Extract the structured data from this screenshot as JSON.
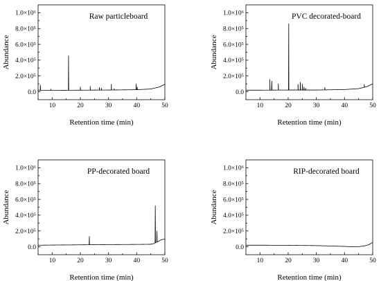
{
  "chart_data": [
    {
      "type": "line",
      "title": "Raw particleboard",
      "xlabel": "Retention time (min)",
      "ylabel": "Abundance",
      "xlim": [
        5,
        50
      ],
      "ylim": [
        -100000,
        1100000
      ],
      "xticks": [
        10,
        20,
        30,
        40,
        50
      ],
      "yticks": [
        0,
        200000,
        400000,
        600000,
        800000,
        1000000
      ],
      "ytick_labels": [
        "0.0",
        "2.0×10⁵",
        "4.0×10⁵",
        "6.0×10⁵",
        "8.0×10⁵",
        "1.0×10⁶"
      ],
      "grid": false,
      "legend": "none",
      "series": [
        {
          "baseline": [
            [
              5,
              18000
            ],
            [
              10,
              18000
            ],
            [
              20,
              20000
            ],
            [
              30,
              22000
            ],
            [
              40,
              26000
            ],
            [
              45,
              35000
            ],
            [
              48,
              60000
            ],
            [
              50,
              95000
            ]
          ],
          "peaks": [
            [
              5.8,
              85000
            ],
            [
              9.5,
              35000
            ],
            [
              15.8,
              455000
            ],
            [
              20,
              60000
            ],
            [
              23.5,
              70000
            ],
            [
              26.8,
              55000
            ],
            [
              27.5,
              45000
            ],
            [
              31,
              95000
            ],
            [
              32,
              40000
            ],
            [
              39.8,
              100000
            ],
            [
              40.2,
              60000
            ]
          ]
        }
      ]
    },
    {
      "type": "line",
      "title": "PVC decorated-board",
      "xlabel": "Retention time (min)",
      "ylabel": "Abundance",
      "xlim": [
        5,
        50
      ],
      "ylim": [
        -100000,
        1100000
      ],
      "xticks": [
        10,
        20,
        30,
        40,
        50
      ],
      "yticks": [
        0,
        200000,
        400000,
        600000,
        800000,
        1000000
      ],
      "ytick_labels": [
        "0.0",
        "2.0×10⁵",
        "4.0×10⁵",
        "6.0×10⁵",
        "8.0×10⁵",
        "1.0×10⁶"
      ],
      "grid": false,
      "legend": "none",
      "series": [
        {
          "baseline": [
            [
              5,
              20000
            ],
            [
              10,
              20000
            ],
            [
              20,
              22000
            ],
            [
              30,
              22000
            ],
            [
              40,
              28000
            ],
            [
              45,
              40000
            ],
            [
              48,
              65000
            ],
            [
              50,
              100000
            ]
          ],
          "peaks": [
            [
              13.5,
              155000
            ],
            [
              14.2,
              135000
            ],
            [
              16.5,
              100000
            ],
            [
              20.2,
              860000
            ],
            [
              23.5,
              95000
            ],
            [
              24.3,
              120000
            ],
            [
              25,
              100000
            ],
            [
              25.6,
              60000
            ],
            [
              26.2,
              45000
            ],
            [
              33,
              55000
            ],
            [
              47,
              95000
            ]
          ]
        }
      ]
    },
    {
      "type": "line",
      "title": "PP-decorated board",
      "xlabel": "Retention time (min)",
      "ylabel": "Abundance",
      "xlim": [
        5,
        50
      ],
      "ylim": [
        -100000,
        1100000
      ],
      "xticks": [
        10,
        20,
        30,
        40,
        50
      ],
      "yticks": [
        0,
        200000,
        400000,
        600000,
        800000,
        1000000
      ],
      "ytick_labels": [
        "0.0",
        "2.0×10⁵",
        "4.0×10⁵",
        "6.0×10⁵",
        "8.0×10⁵",
        "1.0×10⁶"
      ],
      "grid": false,
      "legend": "none",
      "series": [
        {
          "baseline": [
            [
              5,
              20000
            ],
            [
              10,
              22000
            ],
            [
              20,
              25000
            ],
            [
              30,
              28000
            ],
            [
              40,
              30000
            ],
            [
              45,
              32000
            ],
            [
              46,
              40000
            ],
            [
              47.5,
              65000
            ],
            [
              48.5,
              85000
            ],
            [
              50,
              100000
            ]
          ],
          "peaks": [
            [
              23.2,
              130000
            ],
            [
              46.6,
              520000
            ],
            [
              47.2,
              200000
            ]
          ]
        }
      ]
    },
    {
      "type": "line",
      "title": "RIP-decorated board",
      "xlabel": "Retention time (min)",
      "ylabel": "Abundance",
      "xlim": [
        5,
        50
      ],
      "ylim": [
        -100000,
        1100000
      ],
      "xticks": [
        10,
        20,
        30,
        40,
        50
      ],
      "yticks": [
        0,
        200000,
        400000,
        600000,
        800000,
        1000000
      ],
      "ytick_labels": [
        "0.0",
        "2.0×10⁵",
        "4.0×10⁵",
        "6.0×10⁵",
        "8.0×10⁵",
        "1.0×10⁶"
      ],
      "grid": false,
      "legend": "none",
      "series": [
        {
          "baseline": [
            [
              5,
              20000
            ],
            [
              10,
              20000
            ],
            [
              20,
              19000
            ],
            [
              30,
              15000
            ],
            [
              35,
              10000
            ],
            [
              40,
              5000
            ],
            [
              43,
              0
            ],
            [
              45,
              2000
            ],
            [
              47,
              10000
            ],
            [
              48.5,
              25000
            ],
            [
              50,
              55000
            ]
          ],
          "peaks": []
        }
      ]
    }
  ]
}
